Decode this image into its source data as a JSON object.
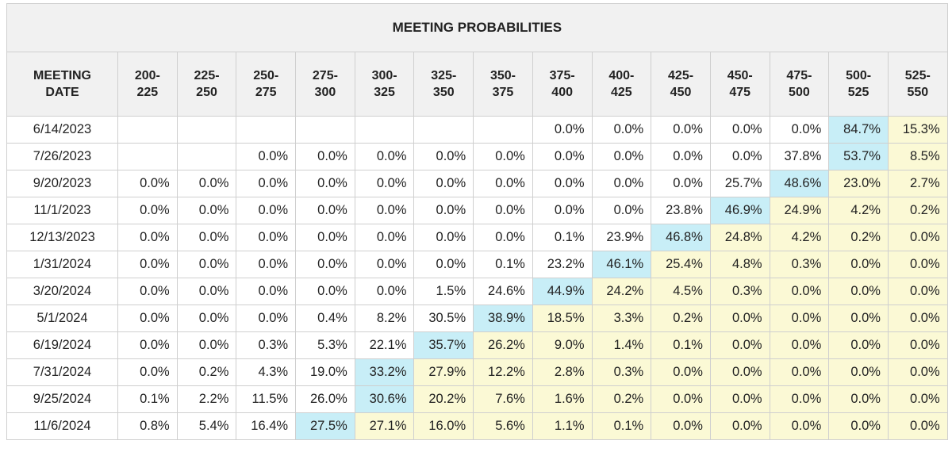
{
  "chart_data": {
    "type": "table",
    "title": "MEETING PROBABILITIES",
    "row_header": [
      "MEETING",
      "DATE"
    ],
    "columns": [
      [
        "200-",
        "225"
      ],
      [
        "225-",
        "250"
      ],
      [
        "250-",
        "275"
      ],
      [
        "275-",
        "300"
      ],
      [
        "300-",
        "325"
      ],
      [
        "325-",
        "350"
      ],
      [
        "350-",
        "375"
      ],
      [
        "375-",
        "400"
      ],
      [
        "400-",
        "425"
      ],
      [
        "425-",
        "450"
      ],
      [
        "450-",
        "475"
      ],
      [
        "475-",
        "500"
      ],
      [
        "500-",
        "525"
      ],
      [
        "525-",
        "550"
      ]
    ],
    "rows": [
      {
        "date": "6/14/2023",
        "values": [
          "",
          "",
          "",
          "",
          "",
          "",
          "",
          "0.0%",
          "0.0%",
          "0.0%",
          "0.0%",
          "0.0%",
          "84.7%",
          "15.3%"
        ],
        "highlight": 12,
        "shade_from": 13
      },
      {
        "date": "7/26/2023",
        "values": [
          "",
          "",
          "0.0%",
          "0.0%",
          "0.0%",
          "0.0%",
          "0.0%",
          "0.0%",
          "0.0%",
          "0.0%",
          "0.0%",
          "37.8%",
          "53.7%",
          "8.5%"
        ],
        "highlight": 12,
        "shade_from": 13
      },
      {
        "date": "9/20/2023",
        "values": [
          "0.0%",
          "0.0%",
          "0.0%",
          "0.0%",
          "0.0%",
          "0.0%",
          "0.0%",
          "0.0%",
          "0.0%",
          "0.0%",
          "25.7%",
          "48.6%",
          "23.0%",
          "2.7%"
        ],
        "highlight": 11,
        "shade_from": 12
      },
      {
        "date": "11/1/2023",
        "values": [
          "0.0%",
          "0.0%",
          "0.0%",
          "0.0%",
          "0.0%",
          "0.0%",
          "0.0%",
          "0.0%",
          "0.0%",
          "23.8%",
          "46.9%",
          "24.9%",
          "4.2%",
          "0.2%"
        ],
        "highlight": 10,
        "shade_from": 11
      },
      {
        "date": "12/13/2023",
        "values": [
          "0.0%",
          "0.0%",
          "0.0%",
          "0.0%",
          "0.0%",
          "0.0%",
          "0.0%",
          "0.1%",
          "23.9%",
          "46.8%",
          "24.8%",
          "4.2%",
          "0.2%",
          "0.0%"
        ],
        "highlight": 9,
        "shade_from": 10
      },
      {
        "date": "1/31/2024",
        "values": [
          "0.0%",
          "0.0%",
          "0.0%",
          "0.0%",
          "0.0%",
          "0.0%",
          "0.1%",
          "23.2%",
          "46.1%",
          "25.4%",
          "4.8%",
          "0.3%",
          "0.0%",
          "0.0%"
        ],
        "highlight": 8,
        "shade_from": 9
      },
      {
        "date": "3/20/2024",
        "values": [
          "0.0%",
          "0.0%",
          "0.0%",
          "0.0%",
          "0.0%",
          "1.5%",
          "24.6%",
          "44.9%",
          "24.2%",
          "4.5%",
          "0.3%",
          "0.0%",
          "0.0%",
          "0.0%"
        ],
        "highlight": 7,
        "shade_from": 8
      },
      {
        "date": "5/1/2024",
        "values": [
          "0.0%",
          "0.0%",
          "0.0%",
          "0.4%",
          "8.2%",
          "30.5%",
          "38.9%",
          "18.5%",
          "3.3%",
          "0.2%",
          "0.0%",
          "0.0%",
          "0.0%",
          "0.0%"
        ],
        "highlight": 6,
        "shade_from": 7
      },
      {
        "date": "6/19/2024",
        "values": [
          "0.0%",
          "0.0%",
          "0.3%",
          "5.3%",
          "22.1%",
          "35.7%",
          "26.2%",
          "9.0%",
          "1.4%",
          "0.1%",
          "0.0%",
          "0.0%",
          "0.0%",
          "0.0%"
        ],
        "highlight": 5,
        "shade_from": 6
      },
      {
        "date": "7/31/2024",
        "values": [
          "0.0%",
          "0.2%",
          "4.3%",
          "19.0%",
          "33.2%",
          "27.9%",
          "12.2%",
          "2.8%",
          "0.3%",
          "0.0%",
          "0.0%",
          "0.0%",
          "0.0%",
          "0.0%"
        ],
        "highlight": 4,
        "shade_from": 5
      },
      {
        "date": "9/25/2024",
        "values": [
          "0.1%",
          "2.2%",
          "11.5%",
          "26.0%",
          "30.6%",
          "20.2%",
          "7.6%",
          "1.6%",
          "0.2%",
          "0.0%",
          "0.0%",
          "0.0%",
          "0.0%",
          "0.0%"
        ],
        "highlight": 4,
        "shade_from": 5
      },
      {
        "date": "11/6/2024",
        "values": [
          "0.8%",
          "5.4%",
          "16.4%",
          "27.5%",
          "27.1%",
          "16.0%",
          "5.6%",
          "1.1%",
          "0.1%",
          "0.0%",
          "0.0%",
          "0.0%",
          "0.0%",
          "0.0%"
        ],
        "highlight": 3,
        "shade_from": 4
      }
    ]
  },
  "colors": {
    "highlight": "#c8eef7",
    "shaded": "#fbf9d5",
    "header_bg": "#f1f1f1",
    "border": "#cfcfcf"
  }
}
